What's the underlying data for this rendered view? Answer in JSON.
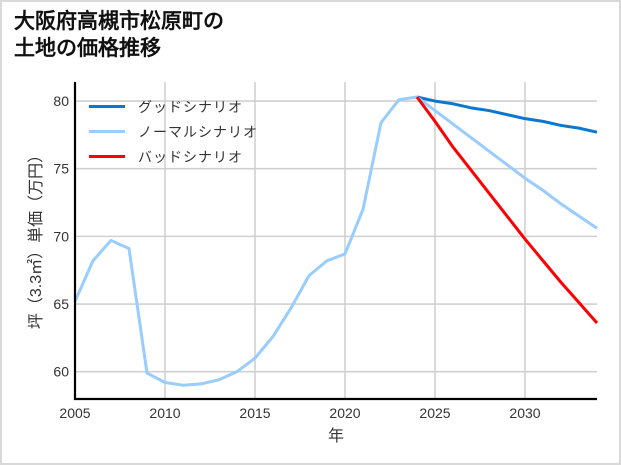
{
  "title": {
    "line1": "大阪府高槻市松原町の",
    "line2": "土地の価格推移"
  },
  "chart_data": {
    "type": "line",
    "title": "大阪府高槻市松原町の土地の価格推移",
    "xlabel": "年",
    "ylabel": "坪（3.3㎡）単価（万円）",
    "xlim": [
      2005,
      2034
    ],
    "ylim": [
      57.98,
      81.41
    ],
    "xticks": [
      2005,
      2010,
      2015,
      2020,
      2025,
      2030
    ],
    "yticks": [
      60,
      65,
      70,
      75,
      80
    ],
    "grid": true,
    "legend_position": "upper left",
    "series": [
      {
        "name": "グッドシナリオ",
        "color": "#0a78d0",
        "x": [
          2024,
          2025,
          2026,
          2027,
          2028,
          2029,
          2030,
          2031,
          2032,
          2033,
          2034
        ],
        "values": [
          80.3,
          80.0,
          79.8,
          79.5,
          79.3,
          79.0,
          78.7,
          78.5,
          78.2,
          78.0,
          77.7
        ]
      },
      {
        "name": "ノーマルシナリオ",
        "color": "#99ccff",
        "x": [
          2005,
          2006,
          2007,
          2008,
          2009,
          2010,
          2011,
          2012,
          2013,
          2014,
          2015,
          2016,
          2017,
          2018,
          2019,
          2020,
          2021,
          2022,
          2023,
          2024,
          2025,
          2026,
          2027,
          2028,
          2029,
          2030,
          2031,
          2032,
          2033,
          2034
        ],
        "values": [
          65.2,
          68.2,
          69.7,
          69.1,
          59.9,
          59.2,
          59.0,
          59.1,
          59.4,
          60.0,
          61.0,
          62.6,
          64.7,
          67.1,
          68.2,
          68.7,
          72.0,
          78.4,
          80.1,
          80.3,
          79.3,
          78.3,
          77.3,
          76.3,
          75.3,
          74.3,
          73.4,
          72.4,
          71.5,
          70.6
        ]
      },
      {
        "name": "バッドシナリオ",
        "color": "#ff0000",
        "x": [
          2024,
          2025,
          2026,
          2027,
          2028,
          2029,
          2030,
          2031,
          2032,
          2033,
          2034
        ],
        "values": [
          80.3,
          78.5,
          76.6,
          74.9,
          73.2,
          71.5,
          69.8,
          68.2,
          66.6,
          65.1,
          63.6
        ]
      }
    ],
    "colors": {
      "grid": "#d0d0d0",
      "axis": "#000000"
    }
  }
}
